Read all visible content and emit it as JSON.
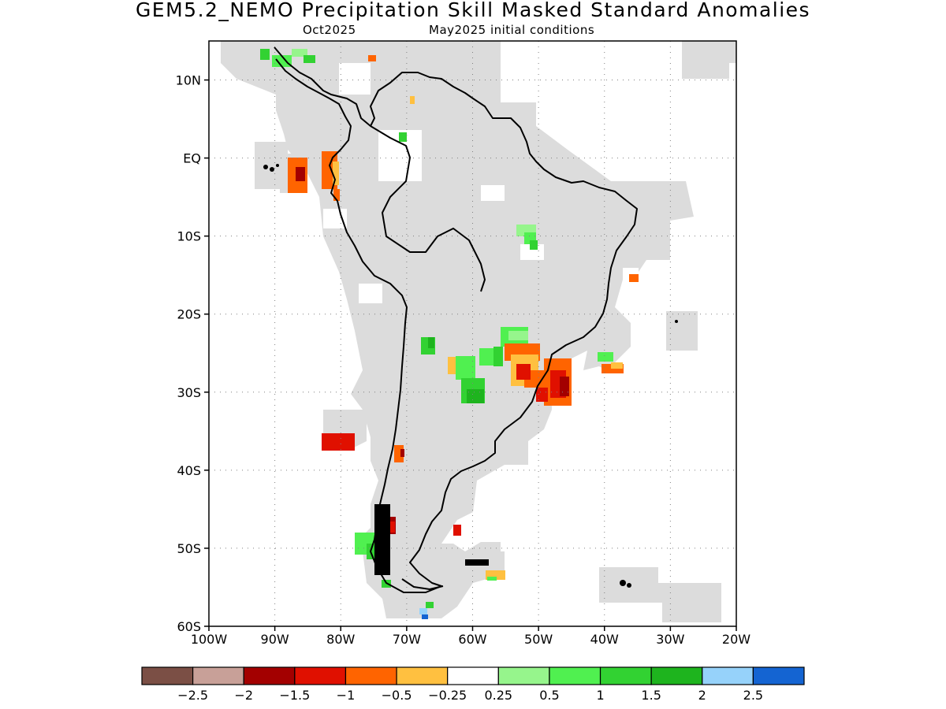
{
  "title": "GEM5.2_NEMO Precipitation Skill Masked Standard Anomalies",
  "subtitle_left": "Oct2025",
  "subtitle_right": "May2025 initial conditions",
  "map": {
    "lon_range": [
      -100,
      -20
    ],
    "lat_range": [
      -60,
      15
    ],
    "gridlines": true,
    "mask_color": "#dcdcdc",
    "lat_ticks": [
      "10N",
      "EQ",
      "10S",
      "20S",
      "30S",
      "40S",
      "50S",
      "60S"
    ],
    "lon_ticks": [
      "100W",
      "90W",
      "80W",
      "70W",
      "60W",
      "50W",
      "40W",
      "30W",
      "20W"
    ]
  },
  "colorbar": {
    "colors": [
      "#7b4f45",
      "#c8a098",
      "#a30000",
      "#e01000",
      "#ff6400",
      "#ffc040",
      "#ffffff",
      "#96f58c",
      "#50f050",
      "#32d232",
      "#1eb41e",
      "#96d2fa",
      "#1464d2"
    ],
    "labels": [
      "−2.5",
      "−2",
      "−1.5",
      "−1",
      "−0.5",
      "−0.25",
      "0.25",
      "0.5",
      "1",
      "1.5",
      "2",
      "2.5"
    ]
  }
}
